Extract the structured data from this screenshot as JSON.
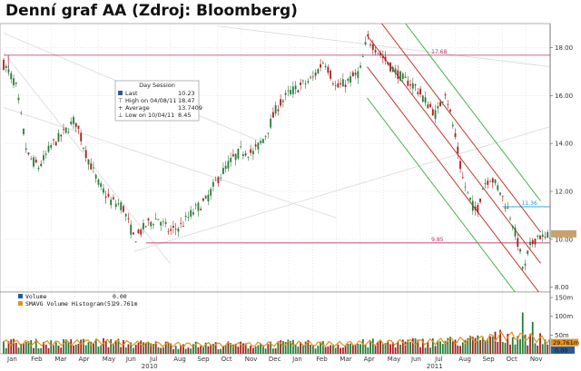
{
  "page_title": "Denní graf AA (Zdroj: Bloomberg)",
  "chart_data": {
    "type": "candlestick",
    "price_axis": {
      "ylim": [
        8,
        19
      ],
      "ticks": [
        "8.00",
        "10.00",
        "12.00",
        "14.00",
        "16.00",
        "18.00"
      ]
    },
    "months": [
      "Jan",
      "Feb",
      "Mar",
      "Apr",
      "May",
      "Jun",
      "Jul",
      "Aug",
      "Sep",
      "Oct",
      "Nov",
      "Dec",
      "Jan",
      "Feb",
      "Mar",
      "Apr",
      "May",
      "Jun",
      "Jul",
      "Aug",
      "Sep",
      "Oct",
      "Nov"
    ],
    "years": [
      "2010",
      "2011"
    ],
    "price_path": [
      [
        0,
        17.3
      ],
      [
        0.5,
        16.5
      ],
      [
        1.0,
        13.5
      ],
      [
        1.5,
        13.0
      ],
      [
        2.0,
        13.9
      ],
      [
        2.5,
        14.4
      ],
      [
        3.0,
        15.0
      ],
      [
        3.5,
        13.5
      ],
      [
        4.0,
        12.3
      ],
      [
        4.5,
        11.6
      ],
      [
        5.0,
        11.4
      ],
      [
        5.5,
        10.0
      ],
      [
        6.0,
        10.6
      ],
      [
        6.5,
        10.9
      ],
      [
        7.0,
        10.3
      ],
      [
        7.5,
        10.6
      ],
      [
        8.0,
        11.2
      ],
      [
        8.5,
        11.6
      ],
      [
        9.0,
        12.5
      ],
      [
        9.5,
        13.2
      ],
      [
        10.0,
        13.7
      ],
      [
        10.5,
        13.6
      ],
      [
        11.0,
        14.3
      ],
      [
        11.5,
        15.5
      ],
      [
        12.0,
        16.1
      ],
      [
        12.5,
        16.4
      ],
      [
        13.0,
        16.7
      ],
      [
        13.5,
        17.5
      ],
      [
        14.0,
        16.3
      ],
      [
        14.5,
        16.6
      ],
      [
        15.0,
        17.0
      ],
      [
        15.3,
        18.4
      ],
      [
        15.8,
        17.8
      ],
      [
        16.2,
        17.3
      ],
      [
        16.8,
        16.7
      ],
      [
        17.3,
        16.4
      ],
      [
        17.8,
        15.7
      ],
      [
        18.2,
        15.2
      ],
      [
        18.6,
        16.2
      ],
      [
        19.0,
        14.3
      ],
      [
        19.3,
        12.6
      ],
      [
        19.6,
        11.7
      ],
      [
        19.9,
        11.1
      ],
      [
        20.2,
        12.3
      ],
      [
        20.5,
        12.6
      ],
      [
        20.9,
        12.0
      ],
      [
        21.4,
        10.8
      ],
      [
        21.7,
        9.6
      ],
      [
        21.9,
        8.6
      ],
      [
        22.1,
        9.6
      ],
      [
        22.5,
        10.2
      ],
      [
        22.8,
        10.0
      ],
      [
        23.0,
        10.25
      ]
    ],
    "day_session": {
      "title": "Day Session",
      "rows": [
        {
          "label": "Last",
          "value": "10.23"
        },
        {
          "label": "High on 04/08/11",
          "value": "18.47"
        },
        {
          "label": "Average",
          "value": "13.7409"
        },
        {
          "label": "Low on 10/04/11",
          "value": "8.45"
        }
      ]
    },
    "annotations": [
      {
        "text": "17.68",
        "value": 17.68,
        "color": "#b8336a"
      },
      {
        "text": "11.36",
        "value": 11.36,
        "color": "#1a9ed6"
      },
      {
        "text": "9.85",
        "value": 9.85,
        "color": "#b8336a"
      }
    ],
    "last_tag": {
      "value": 10.23,
      "color": "#c9a06d"
    },
    "channel": {
      "start_month": 15.3,
      "end_month": 22.6,
      "mid_start": 18.5,
      "mid_end": 9.0,
      "lines": [
        {
          "offset": 2.6,
          "color": "#4caf50"
        },
        {
          "offset": 1.3,
          "color": "#c0392b"
        },
        {
          "offset": 0,
          "color": "#c0392b"
        },
        {
          "offset": -1.3,
          "color": "#c0392b"
        },
        {
          "offset": -2.6,
          "color": "#4caf50"
        }
      ]
    },
    "volume": {
      "legend": [
        {
          "label": "Volume",
          "value": "0.00",
          "color": "#2a5c93"
        },
        {
          "label": "SMAVG Volume Histogram(5)",
          "value": "29.761m",
          "color": "#e8901a"
        }
      ],
      "axis_ticks": [
        "50m",
        "100m",
        "150m"
      ],
      "ylim": [
        0,
        150
      ],
      "avg_tag": "29.761m",
      "zero_tag": "0.00",
      "level_by_month": [
        [
          0,
          30
        ],
        [
          2,
          28
        ],
        [
          4,
          32
        ],
        [
          6,
          26
        ],
        [
          8,
          24
        ],
        [
          10,
          24
        ],
        [
          12,
          27
        ],
        [
          14,
          26
        ],
        [
          16,
          30
        ],
        [
          18,
          32
        ],
        [
          20,
          38
        ],
        [
          21,
          48
        ],
        [
          22,
          45
        ],
        [
          23,
          35
        ]
      ],
      "spikes": [
        [
          21.8,
          110
        ],
        [
          22.3,
          85
        ]
      ]
    },
    "colors": {
      "up": "#a32020",
      "down": "#2a7a3a",
      "background": "#ffffff"
    }
  }
}
